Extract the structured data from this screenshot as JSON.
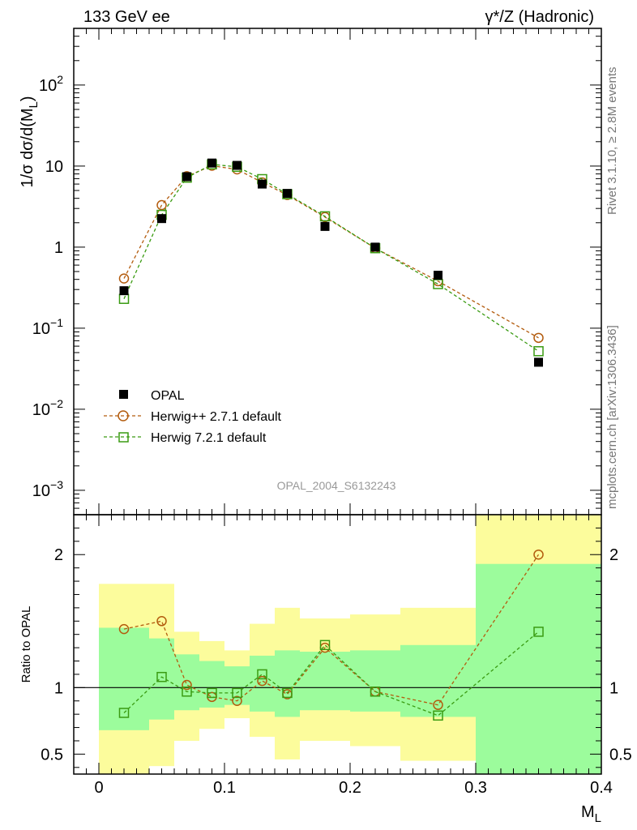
{
  "header": {
    "left_title": "133 GeV ee",
    "right_title_main": "γ*/Z",
    "right_title_paren": " (Hadronic)"
  },
  "side_labels": {
    "rivet": "Rivet 3.1.10, ≥ 2.8M events",
    "mcplots": "mcplots.cern.ch [arXiv:1306.3436]"
  },
  "analysis_label": "OPAL_2004_S6132243",
  "colors": {
    "data": "#000000",
    "herwigpp": "#b35c0e",
    "herwig7": "#3a9b12",
    "band_inner": "#9cfc9c",
    "band_outer": "#fcfc9c"
  },
  "chart_data": [
    {
      "type": "scatter",
      "panel": "main",
      "ylabel_main": "1/σ dσ/d(M",
      "ylabel_sub": "L",
      "ylabel_end": ")",
      "yscale": "log",
      "ylim": [
        0.0005,
        500
      ],
      "xlim": [
        -0.02,
        0.4
      ],
      "yticks": [
        {
          "value": 0.001,
          "base": "10",
          "exp": "−3"
        },
        {
          "value": 0.01,
          "base": "10",
          "exp": "−2"
        },
        {
          "value": 0.1,
          "base": "10",
          "exp": "−1"
        },
        {
          "value": 1,
          "base": "1",
          "exp": ""
        },
        {
          "value": 10,
          "base": "10",
          "exp": ""
        },
        {
          "value": 100,
          "base": "10",
          "exp": "2"
        }
      ],
      "legend_position": "lower-left",
      "series": [
        {
          "name": "OPAL",
          "marker": "filled-square",
          "x": [
            0.02,
            0.05,
            0.07,
            0.09,
            0.11,
            0.13,
            0.15,
            0.18,
            0.22,
            0.27,
            0.35
          ],
          "y": [
            0.29,
            2.25,
            7.4,
            10.9,
            10.2,
            6.0,
            4.6,
            1.8,
            1.0,
            0.45,
            0.038
          ]
        },
        {
          "name": "Herwig++ 2.7.1 default",
          "marker": "open-circle",
          "x": [
            0.02,
            0.05,
            0.07,
            0.09,
            0.11,
            0.13,
            0.15,
            0.18,
            0.22,
            0.27,
            0.35
          ],
          "y": [
            0.41,
            3.3,
            7.5,
            10.1,
            9.1,
            6.3,
            4.4,
            2.35,
            0.97,
            0.38,
            0.076
          ]
        },
        {
          "name": "Herwig 7.2.1 default",
          "marker": "open-square",
          "x": [
            0.02,
            0.05,
            0.07,
            0.09,
            0.11,
            0.13,
            0.15,
            0.18,
            0.22,
            0.27,
            0.35
          ],
          "y": [
            0.23,
            2.5,
            7.2,
            10.5,
            9.8,
            6.9,
            4.5,
            2.4,
            0.97,
            0.35,
            0.052
          ]
        }
      ]
    },
    {
      "type": "scatter",
      "panel": "ratio",
      "ylabel": "Ratio to OPAL",
      "xlabel_main": "M",
      "xlabel_sub": "L",
      "ylim": [
        0.35,
        2.3
      ],
      "xlim": [
        -0.02,
        0.4
      ],
      "yticks": [
        0.5,
        1,
        2
      ],
      "xticks": [
        0,
        0.1,
        0.2,
        0.3,
        0.4
      ],
      "xtick_labels": [
        "0",
        "0.1",
        "0.2",
        "0.3",
        "0.4"
      ],
      "reference_line": 1,
      "bands": [
        {
          "x0": 0.0,
          "x1": 0.04,
          "inner_lo": 0.68,
          "inner_hi": 1.45,
          "outer_lo": 0.35,
          "outer_hi": 1.78
        },
        {
          "x0": 0.04,
          "x1": 0.06,
          "inner_lo": 0.76,
          "inner_hi": 1.37,
          "outer_lo": 0.41,
          "outer_hi": 1.78
        },
        {
          "x0": 0.06,
          "x1": 0.08,
          "inner_lo": 0.83,
          "inner_hi": 1.25,
          "outer_lo": 0.6,
          "outer_hi": 1.42
        },
        {
          "x0": 0.08,
          "x1": 0.1,
          "inner_lo": 0.85,
          "inner_hi": 1.2,
          "outer_lo": 0.69,
          "outer_hi": 1.35
        },
        {
          "x0": 0.1,
          "x1": 0.12,
          "inner_lo": 0.87,
          "inner_hi": 1.16,
          "outer_lo": 0.77,
          "outer_hi": 1.28
        },
        {
          "x0": 0.12,
          "x1": 0.14,
          "inner_lo": 0.82,
          "inner_hi": 1.24,
          "outer_lo": 0.63,
          "outer_hi": 1.48
        },
        {
          "x0": 0.14,
          "x1": 0.16,
          "inner_lo": 0.78,
          "inner_hi": 1.28,
          "outer_lo": 0.46,
          "outer_hi": 1.6
        },
        {
          "x0": 0.16,
          "x1": 0.2,
          "inner_lo": 0.83,
          "inner_hi": 1.27,
          "outer_lo": 0.6,
          "outer_hi": 1.52
        },
        {
          "x0": 0.2,
          "x1": 0.24,
          "inner_lo": 0.82,
          "inner_hi": 1.28,
          "outer_lo": 0.56,
          "outer_hi": 1.55
        },
        {
          "x0": 0.24,
          "x1": 0.3,
          "inner_lo": 0.78,
          "inner_hi": 1.32,
          "outer_lo": 0.45,
          "outer_hi": 1.6
        },
        {
          "x0": 0.3,
          "x1": 0.4,
          "inner_lo": 0.35,
          "inner_hi": 1.93,
          "outer_lo": 0.35,
          "outer_hi": 2.3
        }
      ],
      "series": [
        {
          "name": "Herwig++ 2.7.1 default",
          "marker": "open-circle",
          "x": [
            0.02,
            0.05,
            0.07,
            0.09,
            0.11,
            0.13,
            0.15,
            0.18,
            0.22,
            0.27,
            0.35
          ],
          "y": [
            1.44,
            1.5,
            1.02,
            0.93,
            0.9,
            1.05,
            0.95,
            1.3,
            0.97,
            0.87,
            2.0
          ]
        },
        {
          "name": "Herwig 7.2.1 default",
          "marker": "open-square",
          "x": [
            0.02,
            0.05,
            0.07,
            0.09,
            0.11,
            0.13,
            0.15,
            0.18,
            0.22,
            0.27,
            0.35
          ],
          "y": [
            0.81,
            1.08,
            0.97,
            0.96,
            0.96,
            1.1,
            0.96,
            1.32,
            0.97,
            0.79,
            1.42
          ]
        }
      ]
    }
  ]
}
